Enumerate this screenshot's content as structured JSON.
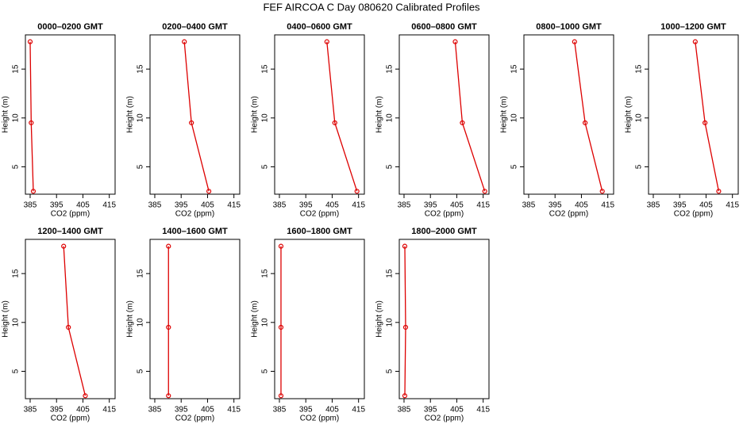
{
  "title": "FEF AIRCOA C  Day 080620  Calibrated Profiles",
  "chart_data": [
    {
      "type": "line",
      "title": "0000–0200 GMT",
      "xlabel": "CO2 (ppm)",
      "ylabel": "Height (m)",
      "x": [
        386.2,
        385.4,
        385.0
      ],
      "values": [
        2.5,
        9.5,
        17.8
      ],
      "color": "#dd0000",
      "xlim": [
        383.2,
        417.2
      ],
      "ylim": [
        2.2,
        18.5
      ],
      "xticks": [
        385,
        395,
        405,
        415
      ],
      "yticks": [
        5,
        10,
        15
      ]
    },
    {
      "type": "line",
      "title": "0200–0400 GMT",
      "xlabel": "CO2 (ppm)",
      "ylabel": "Height (m)",
      "x": [
        405.5,
        398.9,
        396.2
      ],
      "values": [
        2.5,
        9.5,
        17.8
      ],
      "color": "#dd0000",
      "xlim": [
        383.2,
        417.2
      ],
      "ylim": [
        2.2,
        18.5
      ],
      "xticks": [
        385,
        395,
        405,
        415
      ],
      "yticks": [
        5,
        10,
        15
      ]
    },
    {
      "type": "line",
      "title": "0400–0600 GMT",
      "xlabel": "CO2 (ppm)",
      "ylabel": "Height (m)",
      "x": [
        414.4,
        406.0,
        403.0
      ],
      "values": [
        2.5,
        9.5,
        17.8
      ],
      "color": "#dd0000",
      "xlim": [
        383.2,
        417.2
      ],
      "ylim": [
        2.2,
        18.5
      ],
      "xticks": [
        385,
        395,
        405,
        415
      ],
      "yticks": [
        5,
        10,
        15
      ]
    },
    {
      "type": "line",
      "title": "0600–0800 GMT",
      "xlabel": "CO2 (ppm)",
      "ylabel": "Height (m)",
      "x": [
        415.6,
        407.1,
        404.4
      ],
      "values": [
        2.5,
        9.5,
        17.8
      ],
      "color": "#dd0000",
      "xlim": [
        383.2,
        417.2
      ],
      "ylim": [
        2.2,
        18.5
      ],
      "xticks": [
        385,
        395,
        405,
        415
      ],
      "yticks": [
        5,
        10,
        15
      ]
    },
    {
      "type": "line",
      "title": "0800–1000 GMT",
      "xlabel": "CO2 (ppm)",
      "ylabel": "Height (m)",
      "x": [
        412.9,
        406.4,
        402.4
      ],
      "values": [
        2.5,
        9.5,
        17.8
      ],
      "color": "#dd0000",
      "xlim": [
        383.2,
        417.2
      ],
      "ylim": [
        2.2,
        18.5
      ],
      "xticks": [
        385,
        395,
        405,
        415
      ],
      "yticks": [
        5,
        10,
        15
      ]
    },
    {
      "type": "line",
      "title": "1000–1200 GMT",
      "xlabel": "CO2 (ppm)",
      "ylabel": "Height (m)",
      "x": [
        409.8,
        404.6,
        400.9
      ],
      "values": [
        2.5,
        9.5,
        17.8
      ],
      "color": "#dd0000",
      "xlim": [
        383.2,
        417.2
      ],
      "ylim": [
        2.2,
        18.5
      ],
      "xticks": [
        385,
        395,
        405,
        415
      ],
      "yticks": [
        5,
        10,
        15
      ]
    },
    {
      "type": "line",
      "title": "1200–1400 GMT",
      "xlabel": "CO2 (ppm)",
      "ylabel": "Height (m)",
      "x": [
        405.9,
        399.5,
        397.7
      ],
      "values": [
        2.5,
        9.5,
        17.8
      ],
      "color": "#dd0000",
      "xlim": [
        383.2,
        417.2
      ],
      "ylim": [
        2.2,
        18.5
      ],
      "xticks": [
        385,
        395,
        405,
        415
      ],
      "yticks": [
        5,
        10,
        15
      ]
    },
    {
      "type": "line",
      "title": "1400–1600 GMT",
      "xlabel": "CO2 (ppm)",
      "ylabel": "Height (m)",
      "x": [
        390.2,
        390.2,
        390.2
      ],
      "values": [
        2.5,
        9.5,
        17.8
      ],
      "color": "#dd0000",
      "xlim": [
        383.2,
        417.2
      ],
      "ylim": [
        2.2,
        18.5
      ],
      "xticks": [
        385,
        395,
        405,
        415
      ],
      "yticks": [
        5,
        10,
        15
      ]
    },
    {
      "type": "line",
      "title": "1600–1800 GMT",
      "xlabel": "CO2 (ppm)",
      "ylabel": "Height (m)",
      "x": [
        385.6,
        385.6,
        385.6
      ],
      "values": [
        2.5,
        9.5,
        17.8
      ],
      "color": "#dd0000",
      "xlim": [
        383.2,
        417.2
      ],
      "ylim": [
        2.2,
        18.5
      ],
      "xticks": [
        385,
        395,
        405,
        415
      ],
      "yticks": [
        5,
        10,
        15
      ]
    },
    {
      "type": "line",
      "title": "1800–2000 GMT",
      "xlabel": "CO2 (ppm)",
      "ylabel": "Height (m)",
      "x": [
        385.3,
        385.6,
        385.3
      ],
      "values": [
        2.5,
        9.5,
        17.8
      ],
      "color": "#dd0000",
      "xlim": [
        383.2,
        417.2
      ],
      "ylim": [
        2.2,
        18.5
      ],
      "xticks": [
        385,
        395,
        405,
        415
      ],
      "yticks": [
        5,
        10,
        15
      ]
    }
  ]
}
